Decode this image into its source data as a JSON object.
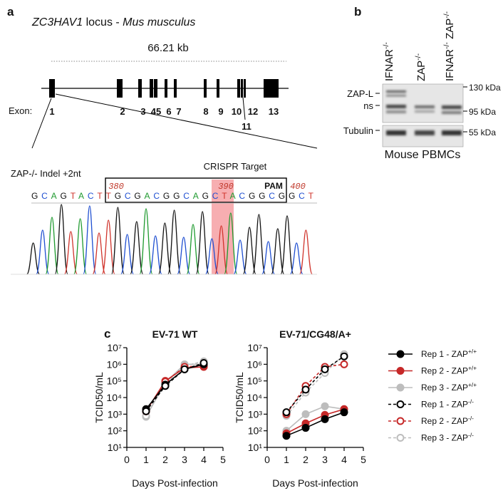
{
  "panel_a": {
    "label": "a",
    "title": {
      "gene": "ZC3HAV1",
      "rest": " locus - ",
      "species": "Mus musculus"
    },
    "length": "66.21 kb",
    "exon_heading": "Exon:",
    "exons": [
      "1",
      "2",
      "3",
      "45",
      "6",
      "7",
      "8",
      "9",
      "10",
      "11",
      "12",
      "13"
    ],
    "indel_label": "ZAP-/- Indel +2nt",
    "crispr_label": "CRISPR Target",
    "pam_label": "PAM",
    "positions": [
      "380",
      "390",
      "400"
    ],
    "sequence": "GCAGTACTTGCGACGGCAGCTACGGCGGCT"
  },
  "panel_b": {
    "label": "b",
    "lanes": [
      "IFNAR-/-",
      "ZAP-/-",
      "IFNAR-/- ZAP-/-"
    ],
    "markers": [
      "130 kDa",
      "95 kDa",
      "55 kDa"
    ],
    "bands": [
      "ZAP-L",
      "ns",
      "Tubulin"
    ],
    "caption": "Mouse PBMCs"
  },
  "panel_c": {
    "label": "c"
  },
  "chart_data": [
    {
      "type": "line",
      "title": "EV-71 WT",
      "x_label": "Days Post-infection",
      "y_label": "TCID50/mL",
      "log_y": true,
      "x": [
        1,
        2,
        3,
        4
      ],
      "xlim": [
        0,
        5
      ],
      "xticks": [
        0,
        1,
        2,
        3,
        4,
        5
      ],
      "ylim": [
        10,
        10000000
      ],
      "yticks": [
        {
          "value": 10,
          "label": "10¹"
        },
        {
          "value": 100,
          "label": "10²"
        },
        {
          "value": 1000,
          "label": "10³"
        },
        {
          "value": 10000,
          "label": "10⁴"
        },
        {
          "value": 100000,
          "label": "10⁵"
        },
        {
          "value": 1000000,
          "label": "10⁶"
        },
        {
          "value": 10000000,
          "label": "10⁷"
        }
      ],
      "series": [
        {
          "name": "Rep 1 - ZAP+/+",
          "color": "#000000",
          "marker": "filled",
          "linestyle": "solid",
          "values": [
            2000,
            60000,
            500000,
            1000000
          ]
        },
        {
          "name": "Rep 2 - ZAP+/+",
          "color": "#c62828",
          "marker": "filled",
          "linestyle": "solid",
          "values": [
            1500,
            100000,
            600000,
            700000
          ]
        },
        {
          "name": "Rep 3 - ZAP+/+",
          "color": "#bdbdbd",
          "marker": "filled",
          "linestyle": "solid",
          "values": [
            700,
            80000,
            1000000,
            1000000
          ]
        },
        {
          "name": "Rep 1 - ZAP-/-",
          "color": "#000000",
          "marker": "open",
          "linestyle": "dashed",
          "values": [
            1500,
            50000,
            500000,
            1200000
          ]
        },
        {
          "name": "Rep 2 - ZAP-/-",
          "color": "#c62828",
          "marker": "open",
          "linestyle": "dashed",
          "values": [
            1500,
            90000,
            700000,
            800000
          ]
        },
        {
          "name": "Rep 3 - ZAP-/-",
          "color": "#bdbdbd",
          "marker": "open",
          "linestyle": "dashed",
          "values": [
            800,
            70000,
            800000,
            1500000
          ]
        }
      ]
    },
    {
      "type": "line",
      "title": "EV-71/CG48/A+",
      "x_label": "Days Post-infection",
      "y_label": "TCID50/mL",
      "log_y": true,
      "legend": "outside-right",
      "x": [
        1,
        2,
        3,
        4
      ],
      "xlim": [
        0,
        5
      ],
      "xticks": [
        0,
        1,
        2,
        3,
        4,
        5
      ],
      "ylim": [
        10,
        10000000
      ],
      "yticks": [
        {
          "value": 10,
          "label": "10¹"
        },
        {
          "value": 100,
          "label": "10²"
        },
        {
          "value": 1000,
          "label": "10³"
        },
        {
          "value": 10000,
          "label": "10⁴"
        },
        {
          "value": 100000,
          "label": "10⁵"
        },
        {
          "value": 1000000,
          "label": "10⁶"
        },
        {
          "value": 10000000,
          "label": "10⁷"
        }
      ],
      "series": [
        {
          "name": "Rep 1 - ZAP+/+",
          "color": "#000000",
          "marker": "filled",
          "linestyle": "solid",
          "values": [
            50,
            150,
            500,
            1300
          ]
        },
        {
          "name": "Rep 2 - ZAP+/+",
          "color": "#c62828",
          "marker": "filled",
          "linestyle": "solid",
          "values": [
            70,
            280,
            900,
            2000
          ]
        },
        {
          "name": "Rep 3 - ZAP+/+",
          "color": "#bdbdbd",
          "marker": "filled",
          "linestyle": "solid",
          "values": [
            100,
            1000,
            3000,
            2000
          ]
        },
        {
          "name": "Rep 1 - ZAP-/-",
          "color": "#000000",
          "marker": "open",
          "linestyle": "dashed",
          "values": [
            1300,
            30000,
            500000,
            3000000
          ]
        },
        {
          "name": "Rep 2 - ZAP-/-",
          "color": "#c62828",
          "marker": "open",
          "linestyle": "dashed",
          "values": [
            1000,
            50000,
            700000,
            1000000
          ]
        },
        {
          "name": "Rep 3 - ZAP-/-",
          "color": "#bdbdbd",
          "marker": "open",
          "linestyle": "dashed",
          "values": [
            800,
            20000,
            300000,
            4000000
          ]
        }
      ]
    }
  ]
}
